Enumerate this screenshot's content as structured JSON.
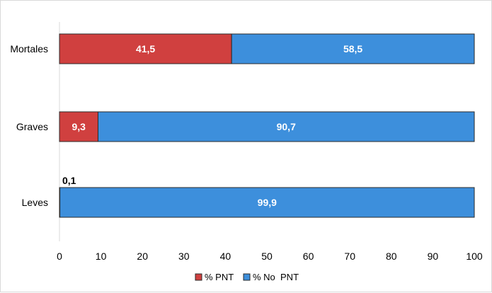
{
  "chart_data": {
    "type": "bar",
    "orientation": "horizontal",
    "stacked": true,
    "categories": [
      "Mortales",
      "Graves",
      "Leves"
    ],
    "series": [
      {
        "name": "% PNT",
        "values": [
          41.5,
          9.3,
          0.1
        ],
        "labels": [
          "41,5",
          "9,3",
          "0,1"
        ],
        "color": "#d0403f"
      },
      {
        "name": "% No  PNT",
        "values": [
          58.5,
          90.7,
          99.9
        ],
        "labels": [
          "58,5",
          "90,7",
          "99,9"
        ],
        "color": "#3d8fdc"
      }
    ],
    "xlim": [
      0,
      100
    ],
    "xticks": [
      "0",
      "10",
      "20",
      "30",
      "40",
      "50",
      "60",
      "70",
      "80",
      "90",
      "100"
    ],
    "grid": false,
    "legend_position": "bottom",
    "title": "",
    "xlabel": "",
    "ylabel": ""
  }
}
